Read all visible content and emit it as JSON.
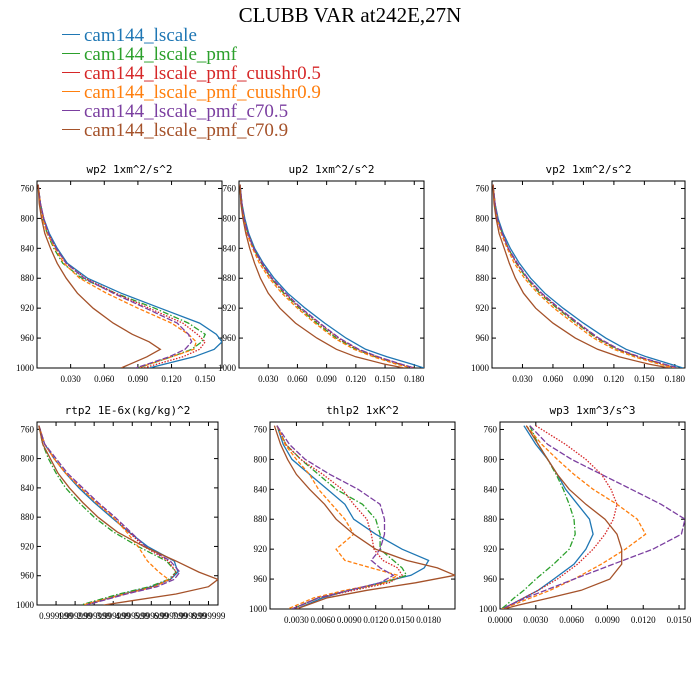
{
  "figure": {
    "title": "CLUBB VAR at242E,27N"
  },
  "legend": [
    {
      "label": "cam144_lscale",
      "color": "#1f77b4",
      "dash": "solid"
    },
    {
      "label": "cam144_lscale_pmf",
      "color": "#2ca02c",
      "dash": "dashdot"
    },
    {
      "label": "cam144_lscale_pmf_cuushr0.5",
      "color": "#d62728",
      "dash": "dot"
    },
    {
      "label": "cam144_lscale_pmf_cuushr0.9",
      "color": "#ff7f0e",
      "dash": "dash"
    },
    {
      "label": "cam144_lscale_pmf_c70.5",
      "color": "#7b3fa0",
      "dash": "longdash"
    },
    {
      "label": "cam144_lscale_pmf_c70.9",
      "color": "#a5522a",
      "dash": "solid"
    }
  ],
  "chart_data": [
    {
      "type": "line",
      "title": "wp2  1xm^2/s^2",
      "xlim": [
        0,
        0.165
      ],
      "ylim": [
        1000,
        750
      ],
      "xticks": [
        0.03,
        0.06,
        0.09,
        0.12,
        0.15
      ],
      "xtick_labels": [
        "0.030",
        "0.060",
        "0.090",
        "0.120",
        "0.150"
      ],
      "yticks": [
        760,
        800,
        840,
        880,
        920,
        960,
        1000
      ],
      "y": [
        755,
        780,
        800,
        820,
        840,
        860,
        880,
        900,
        920,
        940,
        955,
        965,
        975,
        985,
        1000
      ],
      "series": [
        {
          "name": "cam144_lscale",
          "values": [
            0.001,
            0.003,
            0.006,
            0.011,
            0.018,
            0.027,
            0.045,
            0.075,
            0.11,
            0.145,
            0.16,
            0.165,
            0.158,
            0.14,
            0.1
          ]
        },
        {
          "name": "cam144_lscale_pmf",
          "values": [
            0.001,
            0.003,
            0.005,
            0.009,
            0.015,
            0.023,
            0.04,
            0.07,
            0.105,
            0.135,
            0.15,
            0.147,
            0.138,
            0.12,
            0.09
          ]
        },
        {
          "name": "cam144_lscale_pmf_cuushr0.5",
          "values": [
            0.001,
            0.003,
            0.006,
            0.01,
            0.017,
            0.026,
            0.043,
            0.07,
            0.1,
            0.13,
            0.143,
            0.15,
            0.145,
            0.13,
            0.095
          ]
        },
        {
          "name": "cam144_lscale_pmf_cuushr0.9",
          "values": [
            0.001,
            0.003,
            0.005,
            0.009,
            0.016,
            0.024,
            0.038,
            0.062,
            0.09,
            0.12,
            0.135,
            0.142,
            0.14,
            0.12,
            0.09
          ]
        },
        {
          "name": "cam144_lscale_pmf_c70.5",
          "values": [
            0.001,
            0.003,
            0.006,
            0.01,
            0.017,
            0.026,
            0.042,
            0.068,
            0.097,
            0.125,
            0.135,
            0.138,
            0.132,
            0.118,
            0.088
          ]
        },
        {
          "name": "cam144_lscale_pmf_c70.9",
          "values": [
            0.001,
            0.002,
            0.004,
            0.007,
            0.012,
            0.018,
            0.026,
            0.036,
            0.05,
            0.068,
            0.085,
            0.1,
            0.11,
            0.098,
            0.075
          ]
        }
      ]
    },
    {
      "type": "line",
      "title": "up2  1xm^2/s^2",
      "xlim": [
        0,
        0.19
      ],
      "ylim": [
        1000,
        750
      ],
      "xticks": [
        0.03,
        0.06,
        0.09,
        0.12,
        0.15,
        0.18
      ],
      "xtick_labels": [
        "0.030",
        "0.060",
        "0.090",
        "0.120",
        "0.150",
        "0.180"
      ],
      "yticks": [
        760,
        800,
        840,
        880,
        920,
        960,
        1000
      ],
      "y": [
        755,
        780,
        800,
        820,
        840,
        860,
        880,
        900,
        920,
        940,
        960,
        975,
        985,
        995,
        1000
      ],
      "series": [
        {
          "name": "cam144_lscale",
          "values": [
            0.001,
            0.003,
            0.006,
            0.01,
            0.016,
            0.025,
            0.036,
            0.05,
            0.068,
            0.088,
            0.11,
            0.13,
            0.152,
            0.178,
            0.19
          ]
        },
        {
          "name": "cam144_lscale_pmf",
          "values": [
            0.001,
            0.003,
            0.005,
            0.009,
            0.015,
            0.023,
            0.033,
            0.046,
            0.062,
            0.08,
            0.1,
            0.12,
            0.14,
            0.165,
            0.18
          ]
        },
        {
          "name": "cam144_lscale_pmf_cuushr0.5",
          "values": [
            0.001,
            0.003,
            0.005,
            0.009,
            0.015,
            0.023,
            0.033,
            0.047,
            0.063,
            0.082,
            0.102,
            0.122,
            0.142,
            0.166,
            0.18
          ]
        },
        {
          "name": "cam144_lscale_pmf_cuushr0.9",
          "values": [
            0.001,
            0.002,
            0.005,
            0.008,
            0.014,
            0.021,
            0.031,
            0.044,
            0.06,
            0.078,
            0.098,
            0.118,
            0.138,
            0.162,
            0.178
          ]
        },
        {
          "name": "cam144_lscale_pmf_c70.5",
          "values": [
            0.001,
            0.003,
            0.005,
            0.009,
            0.015,
            0.024,
            0.034,
            0.048,
            0.064,
            0.083,
            0.103,
            0.123,
            0.143,
            0.167,
            0.18
          ]
        },
        {
          "name": "cam144_lscale_pmf_c70.9",
          "values": [
            0.001,
            0.002,
            0.004,
            0.007,
            0.011,
            0.016,
            0.022,
            0.03,
            0.042,
            0.058,
            0.08,
            0.1,
            0.12,
            0.15,
            0.17
          ]
        }
      ]
    },
    {
      "type": "line",
      "title": "vp2  1xm^2/s^2",
      "xlim": [
        0,
        0.19
      ],
      "ylim": [
        1000,
        750
      ],
      "xticks": [
        0.03,
        0.06,
        0.09,
        0.12,
        0.15,
        0.18
      ],
      "xtick_labels": [
        "0.030",
        "0.060",
        "0.090",
        "0.120",
        "0.150",
        "0.180"
      ],
      "yticks": [
        760,
        800,
        840,
        880,
        920,
        960,
        1000
      ],
      "y": [
        755,
        780,
        800,
        820,
        840,
        860,
        880,
        900,
        920,
        940,
        960,
        975,
        985,
        995,
        1000
      ],
      "series": [
        {
          "name": "cam144_lscale",
          "values": [
            0.001,
            0.003,
            0.006,
            0.011,
            0.018,
            0.027,
            0.038,
            0.052,
            0.07,
            0.09,
            0.112,
            0.132,
            0.152,
            0.176,
            0.188
          ]
        },
        {
          "name": "cam144_lscale_pmf",
          "values": [
            0.001,
            0.003,
            0.005,
            0.01,
            0.016,
            0.024,
            0.034,
            0.047,
            0.064,
            0.083,
            0.103,
            0.123,
            0.143,
            0.168,
            0.182
          ]
        },
        {
          "name": "cam144_lscale_pmf_cuushr0.5",
          "values": [
            0.001,
            0.003,
            0.005,
            0.01,
            0.016,
            0.024,
            0.035,
            0.048,
            0.065,
            0.084,
            0.104,
            0.124,
            0.144,
            0.169,
            0.182
          ]
        },
        {
          "name": "cam144_lscale_pmf_cuushr0.9",
          "values": [
            0.001,
            0.003,
            0.005,
            0.009,
            0.015,
            0.022,
            0.032,
            0.045,
            0.061,
            0.08,
            0.1,
            0.12,
            0.14,
            0.165,
            0.18
          ]
        },
        {
          "name": "cam144_lscale_pmf_c70.5",
          "values": [
            0.001,
            0.003,
            0.005,
            0.01,
            0.016,
            0.025,
            0.035,
            0.049,
            0.066,
            0.085,
            0.105,
            0.125,
            0.145,
            0.17,
            0.183
          ]
        },
        {
          "name": "cam144_lscale_pmf_c70.9",
          "values": [
            0.001,
            0.002,
            0.004,
            0.007,
            0.012,
            0.017,
            0.023,
            0.031,
            0.043,
            0.06,
            0.082,
            0.104,
            0.125,
            0.155,
            0.175
          ]
        }
      ]
    },
    {
      "type": "line",
      "title": "rtp2  1E-6x(kg/kg)^2",
      "xlim": [
        0,
        9.5
      ],
      "ylim": [
        1000,
        750
      ],
      "xticks": [
        1,
        2,
        3,
        4,
        5,
        6,
        7,
        8,
        9
      ],
      "xtick_labels": [
        "0.999999",
        "1.999999",
        "2.999999",
        "3.999999",
        "4.999999",
        "5.999999",
        "6.999999",
        "7.999999",
        "8.999999"
      ],
      "yticks": [
        760,
        800,
        840,
        880,
        920,
        960,
        1000
      ],
      "y": [
        755,
        780,
        800,
        820,
        840,
        860,
        880,
        900,
        920,
        940,
        955,
        965,
        975,
        985,
        1000
      ],
      "series": [
        {
          "name": "cam144_lscale",
          "values": [
            0.1,
            0.4,
            0.9,
            1.5,
            2.2,
            3.0,
            3.9,
            4.8,
            5.8,
            7.2,
            7.4,
            7.0,
            6.0,
            4.5,
            2.5
          ]
        },
        {
          "name": "cam144_lscale_pmf",
          "values": [
            0.1,
            0.3,
            0.6,
            1.0,
            1.5,
            2.2,
            3.0,
            4.0,
            5.3,
            6.8,
            7.3,
            6.9,
            5.9,
            4.3,
            2.3
          ]
        },
        {
          "name": "cam144_lscale_pmf_cuushr0.5",
          "values": [
            0.1,
            0.4,
            0.9,
            1.5,
            2.3,
            3.1,
            4.0,
            4.8,
            5.6,
            6.9,
            7.3,
            7.0,
            6.1,
            4.6,
            2.5
          ]
        },
        {
          "name": "cam144_lscale_pmf_cuushr0.9",
          "values": [
            0.1,
            0.4,
            0.9,
            1.5,
            2.3,
            3.1,
            4.0,
            4.7,
            5.3,
            5.8,
            6.4,
            6.9,
            6.2,
            4.6,
            2.4
          ]
        },
        {
          "name": "cam144_lscale_pmf_c70.5",
          "values": [
            0.1,
            0.4,
            1.0,
            1.6,
            2.4,
            3.2,
            4.1,
            4.9,
            5.7,
            7.0,
            7.5,
            7.2,
            6.3,
            4.7,
            2.6
          ]
        },
        {
          "name": "cam144_lscale_pmf_c70.9",
          "values": [
            0.1,
            0.3,
            0.7,
            1.1,
            1.7,
            2.4,
            3.2,
            4.2,
            5.6,
            7.3,
            8.5,
            9.5,
            9.0,
            7.3,
            3.5
          ]
        }
      ]
    },
    {
      "type": "line",
      "title": "thlp2  1xK^2",
      "xlim": [
        0,
        0.021
      ],
      "ylim": [
        1000,
        750
      ],
      "xticks": [
        0.003,
        0.006,
        0.009,
        0.012,
        0.015,
        0.018
      ],
      "xtick_labels": [
        "0.0030",
        "0.0060",
        "0.0090",
        "0.0120",
        "0.0150",
        "0.0180"
      ],
      "yticks": [
        760,
        800,
        840,
        880,
        920,
        960,
        1000
      ],
      "y": [
        755,
        780,
        800,
        820,
        840,
        860,
        880,
        900,
        920,
        935,
        945,
        955,
        965,
        975,
        985,
        1000
      ],
      "series": [
        {
          "name": "cam144_lscale",
          "values": [
            0.0008,
            0.0015,
            0.0025,
            0.0045,
            0.0065,
            0.0085,
            0.0095,
            0.012,
            0.015,
            0.018,
            0.0175,
            0.016,
            0.0125,
            0.009,
            0.006,
            0.003
          ]
        },
        {
          "name": "cam144_lscale_pmf",
          "values": [
            0.0008,
            0.0018,
            0.0035,
            0.0055,
            0.0075,
            0.0105,
            0.012,
            0.0125,
            0.0125,
            0.014,
            0.015,
            0.0155,
            0.013,
            0.009,
            0.0055,
            0.0025
          ]
        },
        {
          "name": "cam144_lscale_pmf_cuushr0.5",
          "values": [
            0.0008,
            0.0018,
            0.0035,
            0.006,
            0.0082,
            0.0095,
            0.011,
            0.0115,
            0.0118,
            0.0128,
            0.0145,
            0.015,
            0.0135,
            0.0095,
            0.0055,
            0.0025
          ]
        },
        {
          "name": "cam144_lscale_pmf_cuushr0.9",
          "values": [
            0.0008,
            0.0017,
            0.003,
            0.0045,
            0.0055,
            0.007,
            0.0085,
            0.0095,
            0.0075,
            0.0085,
            0.0115,
            0.0145,
            0.013,
            0.0085,
            0.005,
            0.002
          ]
        },
        {
          "name": "cam144_lscale_pmf_c70.5",
          "values": [
            0.0008,
            0.0022,
            0.004,
            0.0068,
            0.01,
            0.0125,
            0.013,
            0.013,
            0.0125,
            0.0115,
            0.0125,
            0.014,
            0.0125,
            0.009,
            0.0055,
            0.0025
          ]
        },
        {
          "name": "cam144_lscale_pmf_c70.9",
          "values": [
            0.0005,
            0.0012,
            0.002,
            0.003,
            0.0045,
            0.0062,
            0.0075,
            0.0095,
            0.012,
            0.0155,
            0.019,
            0.021,
            0.0165,
            0.011,
            0.0065,
            0.003
          ]
        }
      ]
    },
    {
      "type": "line",
      "title": "wp3  1xm^3/s^3",
      "xlim": [
        0,
        0.0155
      ],
      "ylim": [
        1000,
        750
      ],
      "xticks": [
        0.0,
        0.003,
        0.006,
        0.009,
        0.012,
        0.015
      ],
      "xtick_labels": [
        "0.0000",
        "0.0030",
        "0.0060",
        "0.0090",
        "0.0120",
        "0.0150"
      ],
      "yticks": [
        760,
        800,
        840,
        880,
        920,
        960,
        1000
      ],
      "y": [
        755,
        780,
        800,
        820,
        840,
        860,
        880,
        900,
        920,
        940,
        960,
        975,
        985,
        995,
        1000
      ],
      "series": [
        {
          "name": "cam144_lscale",
          "values": [
            0.002,
            0.003,
            0.004,
            0.0048,
            0.0055,
            0.0065,
            0.0075,
            0.0078,
            0.0072,
            0.0062,
            0.0045,
            0.0032,
            0.002,
            0.0008,
            0.0002
          ]
        },
        {
          "name": "cam144_lscale_pmf",
          "values": [
            0.0025,
            0.0032,
            0.004,
            0.0047,
            0.0053,
            0.0058,
            0.0062,
            0.0063,
            0.0058,
            0.0045,
            0.003,
            0.002,
            0.0012,
            0.0005,
            0.0001
          ]
        },
        {
          "name": "cam144_lscale_pmf_cuushr0.5",
          "values": [
            0.003,
            0.0055,
            0.0072,
            0.0085,
            0.0093,
            0.0098,
            0.0095,
            0.0088,
            0.0078,
            0.0065,
            0.0048,
            0.0032,
            0.002,
            0.0008,
            0.0002
          ]
        },
        {
          "name": "cam144_lscale_pmf_cuushr0.9",
          "values": [
            0.0022,
            0.0035,
            0.0048,
            0.0062,
            0.0078,
            0.0098,
            0.0115,
            0.0122,
            0.0105,
            0.0085,
            0.0062,
            0.0042,
            0.0026,
            0.001,
            0.0002
          ]
        },
        {
          "name": "cam144_lscale_pmf_c70.5",
          "values": [
            0.0025,
            0.004,
            0.006,
            0.0085,
            0.011,
            0.0135,
            0.0155,
            0.0152,
            0.0128,
            0.0095,
            0.0062,
            0.0038,
            0.0022,
            0.0008,
            0.0002
          ]
        },
        {
          "name": "cam144_lscale_pmf_c70.9",
          "values": [
            0.0022,
            0.0032,
            0.004,
            0.0048,
            0.0058,
            0.0072,
            0.0088,
            0.0098,
            0.0102,
            0.0102,
            0.0092,
            0.0068,
            0.0042,
            0.0015,
            0.0003
          ]
        }
      ]
    }
  ]
}
